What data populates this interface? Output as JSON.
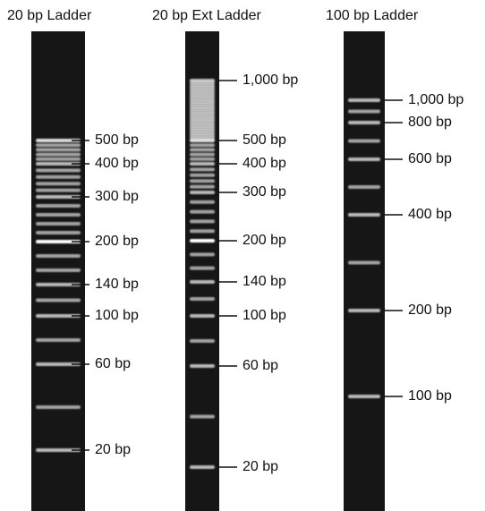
{
  "lanes": [
    {
      "title": "20 bp Ladder",
      "labels": [
        "500 bp",
        "400 bp",
        "300 bp",
        "200 bp",
        "140 bp",
        "100 bp",
        "60 bp",
        "20 bp"
      ]
    },
    {
      "title": "20 bp Ext Ladder",
      "labels": [
        "1,000 bp",
        "500 bp",
        "400 bp",
        "300 bp",
        "200 bp",
        "140 bp",
        "100 bp",
        "60 bp",
        "20 bp"
      ]
    },
    {
      "title": "100 bp Ladder",
      "labels": [
        "1,000 bp",
        "800 bp",
        "600 bp",
        "400 bp",
        "200 bp",
        "100 bp"
      ]
    }
  ]
}
